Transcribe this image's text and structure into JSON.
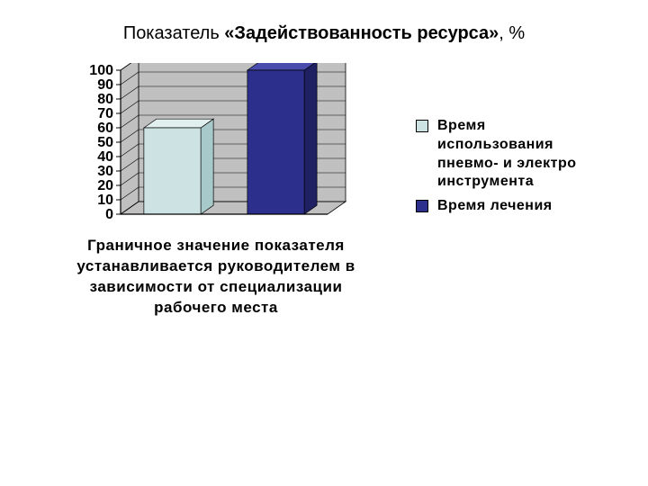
{
  "title": {
    "prefix": "Показатель ",
    "bold": "«Задействованность ресурса»",
    "suffix": ", %"
  },
  "chart": {
    "type": "bar-3d",
    "ylim": [
      0,
      100
    ],
    "yticks": [
      0,
      10,
      20,
      30,
      40,
      50,
      60,
      70,
      80,
      90,
      100
    ],
    "ytick_fontsize": 16,
    "background_color": "#ffffff",
    "wall_color": "#c0c0c0",
    "floor_color": "#c0c0c0",
    "grid_color": "#000000",
    "series": [
      {
        "key": "s1",
        "value": 60,
        "front_color": "#cde3e3",
        "side_color": "#a8c9c9",
        "top_color": "#e2efef"
      },
      {
        "key": "s2",
        "value": 100,
        "front_color": "#2c2f8b",
        "side_color": "#1e2062",
        "top_color": "#4a4dae"
      }
    ],
    "x_axis_label": "Граничное значение показателя устанавливается руководителем в зависимости от специализации рабочего места"
  },
  "legend": {
    "items": [
      {
        "swatch_color": "#cde3e3",
        "label": "Время использования пневмо- и электро инструмента"
      },
      {
        "swatch_color": "#2c2f8b",
        "label": "Время лечения"
      }
    ]
  }
}
